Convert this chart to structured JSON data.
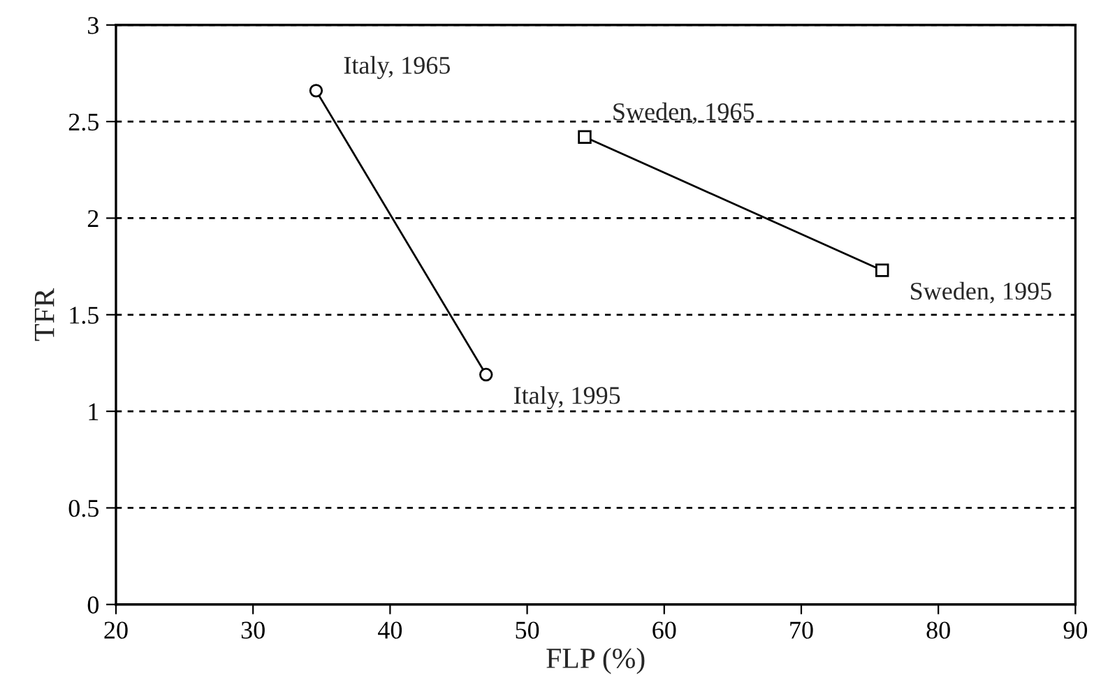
{
  "chart_data": {
    "type": "line",
    "xlabel": "FLP (%)",
    "ylabel": "TFR",
    "series": [
      {
        "color": "#000000",
        "x": [
          34.6,
          47.0
        ],
        "values": [
          2.66,
          1.19
        ],
        "marker": "circle"
      },
      {
        "color": "#000000",
        "x": [
          54.2,
          75.9
        ],
        "values": [
          2.42,
          1.73
        ],
        "marker": "square"
      }
    ],
    "annotations": [
      {
        "text": "Italy, 1965",
        "x": 34.6,
        "y": 2.66
      },
      {
        "text": "Italy, 1995",
        "x": 47.0,
        "y": 1.19
      },
      {
        "text": "Sweden, 1965",
        "x": 54.2,
        "y": 2.42
      },
      {
        "text": "Sweden, 1995",
        "x": 75.9,
        "y": 1.73
      }
    ],
    "xlim": [
      20,
      90
    ],
    "xticks": [
      20,
      30,
      40,
      50,
      60,
      70,
      80,
      90
    ],
    "ylim": [
      0,
      3
    ],
    "yticks": [
      0,
      0.5,
      1,
      1.5,
      2,
      2.5,
      3
    ],
    "grid": "y",
    "line_style": "solid",
    "legend": false
  }
}
